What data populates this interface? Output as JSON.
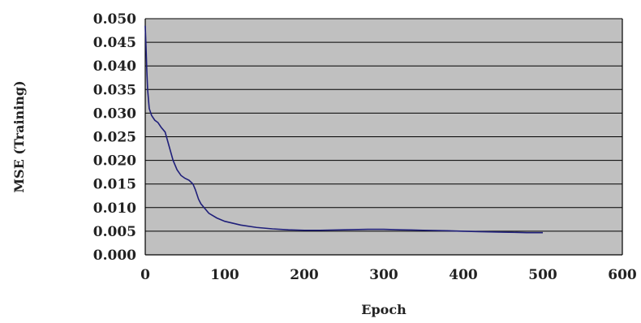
{
  "chart_data": {
    "type": "line",
    "title": "",
    "xlabel": "Epoch",
    "ylabel": "MSE (Training)",
    "xlim": [
      0,
      600
    ],
    "ylim": [
      0,
      0.05
    ],
    "x_ticks": [
      0,
      100,
      200,
      300,
      400,
      500,
      600
    ],
    "y_ticks": [
      0.0,
      0.005,
      0.01,
      0.015,
      0.02,
      0.025,
      0.03,
      0.035,
      0.04,
      0.045,
      0.05
    ],
    "x_tick_labels": [
      "0",
      "100",
      "200",
      "300",
      "400",
      "500",
      "600"
    ],
    "y_tick_labels": [
      "0.000",
      "0.005",
      "0.010",
      "0.015",
      "0.020",
      "0.025",
      "0.030",
      "0.035",
      "0.040",
      "0.045",
      "0.050"
    ],
    "grid": "horizontal",
    "plot_background": "#c0c0c0",
    "series": [
      {
        "color": "#1f1f7a",
        "x": [
          0,
          1,
          2,
          3,
          5,
          8,
          12,
          16,
          20,
          25,
          30,
          35,
          40,
          45,
          50,
          55,
          60,
          63,
          67,
          70,
          75,
          80,
          90,
          100,
          120,
          140,
          160,
          180,
          200,
          220,
          250,
          280,
          300,
          320,
          350,
          380,
          400,
          420,
          450,
          480,
          500
        ],
        "y": [
          0.0485,
          0.044,
          0.039,
          0.035,
          0.031,
          0.0295,
          0.0285,
          0.028,
          0.027,
          0.026,
          0.023,
          0.02,
          0.018,
          0.0168,
          0.0162,
          0.0158,
          0.015,
          0.0138,
          0.0118,
          0.0108,
          0.0098,
          0.0088,
          0.0078,
          0.0071,
          0.0063,
          0.0058,
          0.0055,
          0.0053,
          0.0052,
          0.0052,
          0.0053,
          0.0054,
          0.0054,
          0.0053,
          0.0052,
          0.0051,
          0.005,
          0.0049,
          0.0048,
          0.0047,
          0.0047
        ]
      }
    ]
  }
}
